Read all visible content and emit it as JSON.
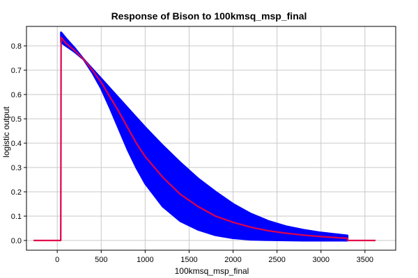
{
  "chart_data": {
    "type": "line",
    "title": "Response of Bison to 100kmsq_msp_final",
    "xlabel": "100kmsq_msp_final",
    "ylabel": "logistic output",
    "xlim": [
      -350,
      3850
    ],
    "ylim": [
      -0.04,
      0.88
    ],
    "x_ticks": [
      0,
      500,
      1000,
      1500,
      2000,
      2500,
      3000,
      3500
    ],
    "y_ticks": [
      0.0,
      0.1,
      0.2,
      0.3,
      0.4,
      0.5,
      0.6,
      0.7,
      0.8
    ],
    "grid": true,
    "colors": {
      "mean": "#e0004a",
      "band": "#0000ff"
    },
    "series": [
      {
        "role": "mean",
        "x": [
          -270,
          40,
          42,
          44,
          100,
          200,
          300,
          400,
          500,
          600,
          700,
          800,
          900,
          1000,
          1200,
          1400,
          1600,
          1800,
          2000,
          2200,
          2400,
          2600,
          2800,
          3000,
          3200,
          3300,
          3300,
          3305,
          3620
        ],
        "y": [
          0.0,
          0.0,
          0.42,
          0.835,
          0.81,
          0.78,
          0.745,
          0.7,
          0.65,
          0.59,
          0.53,
          0.465,
          0.4,
          0.345,
          0.26,
          0.19,
          0.14,
          0.1,
          0.075,
          0.055,
          0.04,
          0.03,
          0.022,
          0.016,
          0.011,
          0.009,
          0.009,
          0.0,
          0.0
        ]
      },
      {
        "role": "band_upper",
        "x": [
          44,
          100,
          200,
          300,
          400,
          500,
          600,
          700,
          800,
          900,
          1000,
          1200,
          1400,
          1600,
          1800,
          2000,
          2200,
          2400,
          2600,
          2800,
          3000,
          3200,
          3300
        ],
        "y": [
          0.855,
          0.83,
          0.79,
          0.745,
          0.705,
          0.665,
          0.625,
          0.585,
          0.545,
          0.505,
          0.465,
          0.39,
          0.32,
          0.255,
          0.2,
          0.15,
          0.11,
          0.08,
          0.058,
          0.043,
          0.032,
          0.024,
          0.02
        ]
      },
      {
        "role": "band_lower",
        "x": [
          44,
          100,
          200,
          300,
          400,
          500,
          600,
          700,
          800,
          900,
          1000,
          1200,
          1400,
          1600,
          1800,
          2000,
          2200,
          2400,
          2600,
          2800,
          3000,
          3200,
          3300
        ],
        "y": [
          0.815,
          0.8,
          0.775,
          0.745,
          0.69,
          0.625,
          0.545,
          0.46,
          0.375,
          0.3,
          0.235,
          0.14,
          0.08,
          0.045,
          0.022,
          0.01,
          0.004,
          0.002,
          0.001,
          0.0,
          0.0,
          0.0,
          0.0
        ]
      }
    ]
  }
}
